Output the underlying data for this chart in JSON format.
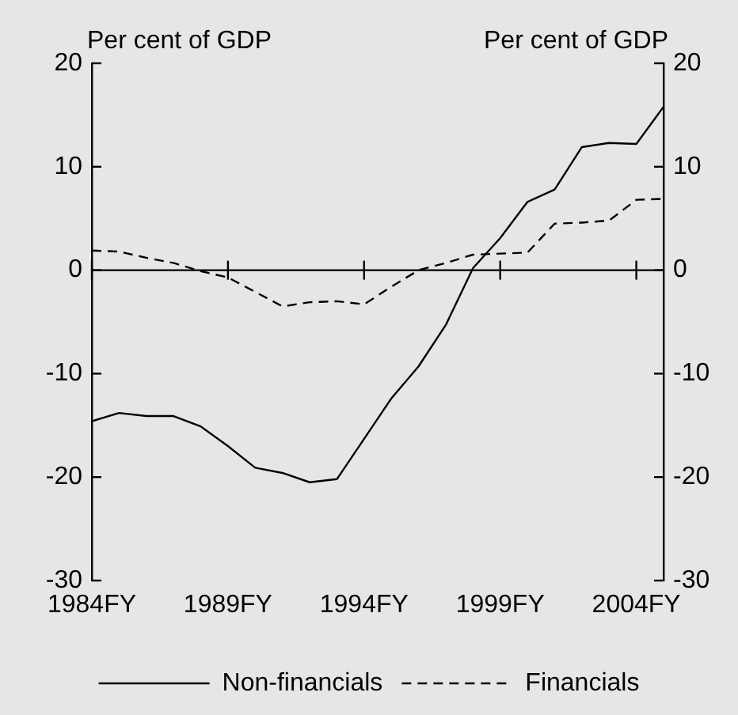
{
  "chart_data": {
    "type": "line",
    "ylabel": "Per cent of GDP",
    "y2label": "Per cent of GDP",
    "x": [
      1984,
      1985,
      1986,
      1987,
      1988,
      1989,
      1990,
      1991,
      1992,
      1993,
      1994,
      1995,
      1996,
      1997,
      1998,
      1999,
      2000,
      2001,
      2002,
      2003,
      2004,
      2005
    ],
    "xlim": [
      1984,
      2005
    ],
    "xticks": [
      {
        "value": 1984,
        "label": "1984FY"
      },
      {
        "value": 1989,
        "label": "1989FY"
      },
      {
        "value": 1994,
        "label": "1994FY"
      },
      {
        "value": 1999,
        "label": "1999FY"
      },
      {
        "value": 2004,
        "label": "2004FY"
      }
    ],
    "ylim": [
      -30,
      20
    ],
    "yticks": [
      -30,
      -20,
      -10,
      0,
      10,
      20
    ],
    "y2lim": [
      -30,
      20
    ],
    "y2ticks": [
      -30,
      -20,
      -10,
      0,
      10,
      20
    ],
    "series": [
      {
        "name": "Non-financials",
        "color": "#000000",
        "line_style": "solid",
        "values": [
          -14.6,
          -13.8,
          -14.1,
          -14.1,
          -15.1,
          -17.0,
          -19.1,
          -19.6,
          -20.5,
          -20.2,
          -16.3,
          -12.4,
          -9.3,
          -5.3,
          0.2,
          3.1,
          6.6,
          7.8,
          11.9,
          12.3,
          12.2,
          15.8
        ]
      },
      {
        "name": "Financials",
        "color": "#000000",
        "line_style": "dashed",
        "values": [
          1.9,
          1.8,
          1.2,
          0.7,
          -0.1,
          -0.7,
          -2.1,
          -3.5,
          -3.1,
          -3.0,
          -3.3,
          -1.6,
          0.0,
          0.7,
          1.5,
          1.6,
          1.7,
          4.5,
          4.6,
          4.8,
          6.8,
          6.9
        ]
      }
    ],
    "ref_lines": [
      {
        "axis": "y",
        "value": 0,
        "color": "#000000"
      }
    ],
    "grid": false,
    "legend": "bottom",
    "marker": "none"
  }
}
